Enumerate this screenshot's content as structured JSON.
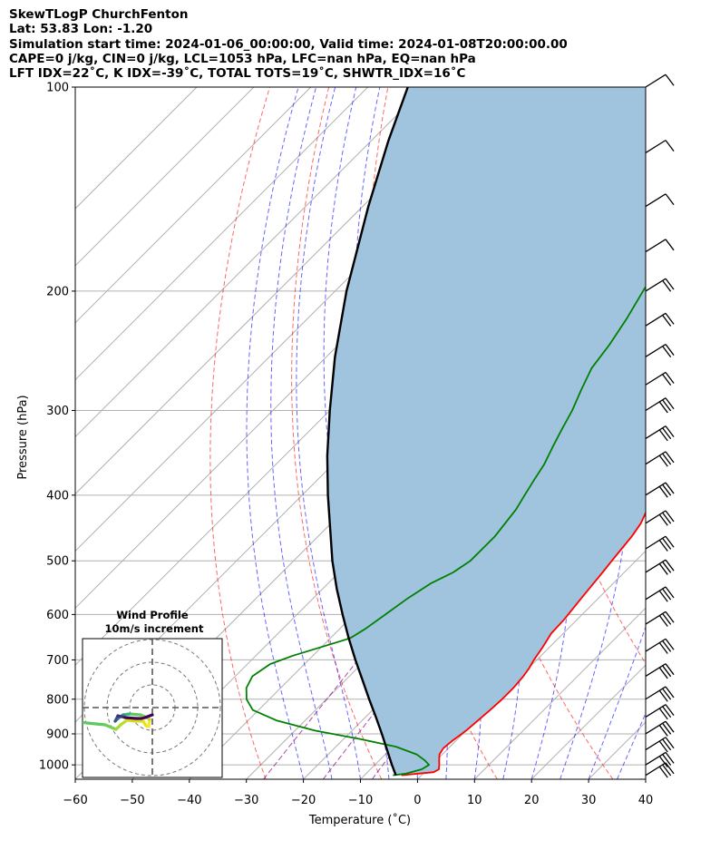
{
  "header": {
    "line1": "SkewTLogP ChurchFenton",
    "line2": "Lat: 53.83   Lon: -1.20",
    "line3": "Simulation start time: 2024-01-06_00:00:00, Valid time: 2024-01-08T20:00:00.00",
    "line4": "CAPE=0 j/kg, CIN=0 j/kg, LCL=1053 hPa, LFC=nan hPa, EQ=nan hPa",
    "line5": "LFT IDX=22˚C, K IDX=-39˚C, TOTAL TOTS=19˚C, SHWTR_IDX=16˚C"
  },
  "chart_data": {
    "type": "line",
    "subtype": "skew-T log-P diagram",
    "xlabel": "Temperature (˚C)",
    "ylabel": "Pressure (hPa)",
    "xlim": [
      -60,
      40
    ],
    "ylim": [
      1050,
      100
    ],
    "y_scale": "log",
    "x_ticks": [
      -60,
      -50,
      -40,
      -30,
      -20,
      -10,
      0,
      10,
      20,
      30,
      40
    ],
    "x_tick_labels": [
      "−60",
      "−50",
      "−40",
      "−30",
      "−20",
      "−10",
      "0",
      "10",
      "20",
      "30",
      "40"
    ],
    "y_ticks": [
      100,
      200,
      300,
      400,
      500,
      600,
      700,
      800,
      900,
      1000
    ],
    "grid": true,
    "skew": "45 degrees",
    "dry_adiabats_color": "#ff0000",
    "moist_adiabats_color": "#0000ff",
    "mixing_ratio_color": "#800080",
    "cape_cin_fill": "#a0c4de",
    "series": [
      {
        "color": "#ff0000",
        "points": [
          [
            1036,
            -3.5
          ],
          [
            1025,
            1.6
          ],
          [
            1015,
            2.0
          ],
          [
            1000,
            1.3
          ],
          [
            985,
            0.5
          ],
          [
            965,
            -0.5
          ],
          [
            945,
            -0.9
          ],
          [
            920,
            -0.6
          ],
          [
            890,
            0.0
          ],
          [
            860,
            0.3
          ],
          [
            830,
            0.6
          ],
          [
            800,
            0.8
          ],
          [
            770,
            0.8
          ],
          [
            740,
            0.5
          ],
          [
            720,
            0.1
          ],
          [
            700,
            -0.5
          ],
          [
            670,
            -1.2
          ],
          [
            640,
            -2.1
          ],
          [
            610,
            -2.3
          ],
          [
            580,
            -2.8
          ],
          [
            550,
            -3.3
          ],
          [
            520,
            -3.8
          ],
          [
            500,
            -4.2
          ],
          [
            480,
            -4.6
          ],
          [
            460,
            -5.0
          ],
          [
            440,
            -5.7
          ],
          [
            420,
            -7.0
          ],
          [
            400,
            -8.9
          ],
          [
            380,
            -11.1
          ],
          [
            360,
            -13.5
          ],
          [
            340,
            -16.0
          ],
          [
            320,
            -18.5
          ],
          [
            300,
            -21.0
          ],
          [
            280,
            -23.0
          ],
          [
            265,
            -24.5
          ],
          [
            255,
            -25.5
          ],
          [
            245,
            -26.0
          ],
          [
            235,
            -26.2
          ],
          [
            220,
            -26.5
          ],
          [
            200,
            -27.0
          ],
          [
            180,
            -28.0
          ],
          [
            170,
            -29.0
          ],
          [
            160,
            -32.0
          ],
          [
            150,
            -35.0
          ],
          [
            140,
            -39.0
          ],
          [
            130,
            -43.0
          ],
          [
            120,
            -48.0
          ],
          [
            110,
            -52.0
          ],
          [
            100,
            -57.0
          ]
        ]
      },
      {
        "color": "#008000",
        "points": [
          [
            1036,
            -5.0
          ],
          [
            1030,
            -3.0
          ],
          [
            1015,
            -1.0
          ],
          [
            1000,
            -0.5
          ],
          [
            985,
            -2.0
          ],
          [
            965,
            -4.5
          ],
          [
            940,
            -9.5
          ],
          [
            915,
            -17.5
          ],
          [
            890,
            -26.5
          ],
          [
            860,
            -35.0
          ],
          [
            830,
            -41.0
          ],
          [
            800,
            -44.0
          ],
          [
            770,
            -46.0
          ],
          [
            740,
            -47.0
          ],
          [
            710,
            -46.0
          ],
          [
            690,
            -43.5
          ],
          [
            670,
            -40.0
          ],
          [
            650,
            -36.5
          ],
          [
            630,
            -35.5
          ],
          [
            600,
            -34.5
          ],
          [
            570,
            -33.5
          ],
          [
            540,
            -32.0
          ],
          [
            520,
            -30.0
          ],
          [
            500,
            -29.0
          ],
          [
            480,
            -29.0
          ],
          [
            460,
            -29.0
          ],
          [
            440,
            -29.5
          ],
          [
            420,
            -30.0
          ],
          [
            400,
            -31.0
          ],
          [
            380,
            -32.0
          ],
          [
            360,
            -33.0
          ],
          [
            340,
            -34.5
          ],
          [
            320,
            -36.0
          ],
          [
            300,
            -37.5
          ],
          [
            280,
            -39.5
          ],
          [
            260,
            -41.5
          ],
          [
            240,
            -42.5
          ],
          [
            220,
            -44.0
          ],
          [
            200,
            -46.0
          ],
          [
            180,
            -48.0
          ],
          [
            165,
            -50.5
          ],
          [
            155,
            -53.0
          ],
          [
            150,
            -55.5
          ],
          [
            140,
            -58.0
          ],
          [
            130,
            -60.0
          ],
          [
            120,
            -62.5
          ],
          [
            110,
            -65.0
          ],
          [
            100,
            -67.5
          ]
        ]
      },
      {
        "color": "#000000",
        "points": [
          [
            1036,
            -4.5
          ],
          [
            1000,
            -7.0
          ],
          [
            950,
            -10.5
          ],
          [
            900,
            -14.2
          ],
          [
            850,
            -18.2
          ],
          [
            800,
            -22.5
          ],
          [
            750,
            -27.0
          ],
          [
            700,
            -31.8
          ],
          [
            650,
            -36.8
          ],
          [
            600,
            -42.0
          ],
          [
            550,
            -47.5
          ],
          [
            500,
            -53.2
          ],
          [
            450,
            -59.0
          ],
          [
            400,
            -65.5
          ],
          [
            350,
            -72.5
          ],
          [
            300,
            -80.0
          ],
          [
            250,
            -88.5
          ],
          [
            200,
            -98.0
          ],
          [
            150,
            -109.0
          ],
          [
            120,
            -117.0
          ],
          [
            100,
            -123.0
          ]
        ]
      }
    ],
    "wind_barbs_side": "right",
    "inset": {
      "type": "hodograph",
      "title_line1": "Wind Profile",
      "title_line2": "10m/s increment",
      "rings": 3
    }
  }
}
